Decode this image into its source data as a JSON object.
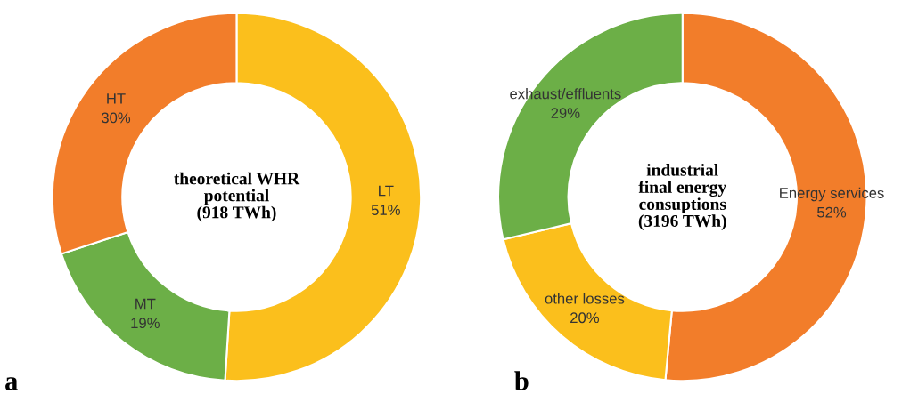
{
  "chart_data": [
    {
      "type": "donut",
      "title": "theoretical WHR\npotential\n(918 TWh)",
      "categories": [
        "LT",
        "MT",
        "HT"
      ],
      "values": [
        51,
        19,
        30
      ],
      "value_labels": [
        "51%",
        "19%",
        "30%"
      ],
      "colors": [
        "#fbbf1c",
        "#6caf47",
        "#f27d2a"
      ],
      "annotations": [
        "a"
      ]
    },
    {
      "type": "donut",
      "title": "industrial\nfinal energy\nconsuptions\n(3196 TWh)",
      "categories": [
        "Energy services",
        "other losses",
        "exhaust/effluents"
      ],
      "values": [
        52,
        20,
        29
      ],
      "value_labels": [
        "52%",
        "20%",
        "29%"
      ],
      "colors": [
        "#f27d2a",
        "#fbbf1c",
        "#6caf47"
      ],
      "annotations": [
        "b"
      ]
    }
  ]
}
